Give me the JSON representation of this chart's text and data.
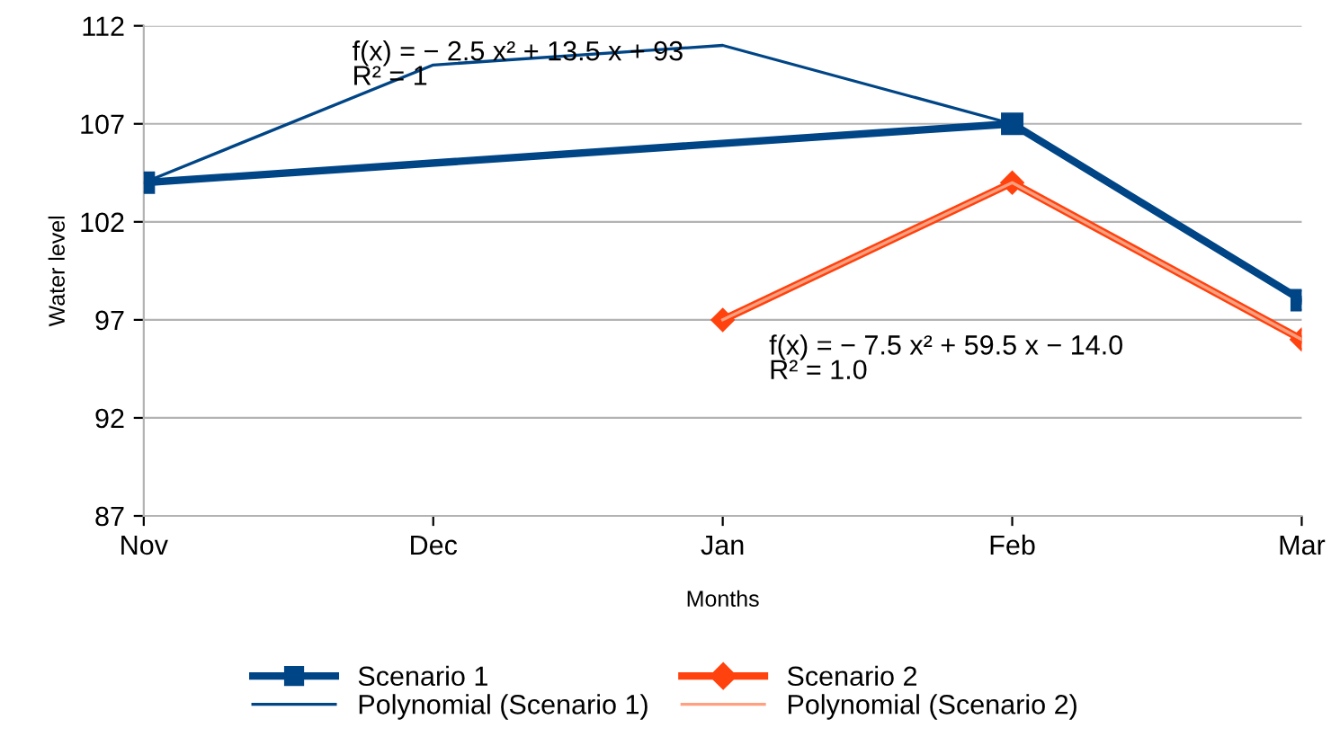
{
  "chart_data": {
    "type": "line",
    "xlabel": "Months",
    "ylabel": "Water level",
    "categories": [
      "Nov",
      "Dec",
      "Jan",
      "Feb",
      "Mar"
    ],
    "ylim": [
      87,
      112
    ],
    "yticks": [
      87,
      92,
      97,
      102,
      107,
      112
    ],
    "grid": "y",
    "legend": "bottom",
    "series": [
      {
        "name": "Scenario 1",
        "color": "#004586",
        "marker": "square",
        "values": [
          104,
          null,
          null,
          107,
          98
        ]
      },
      {
        "name": "Polynomial (Scenario 1)",
        "color": "#004586",
        "marker": "none",
        "values": [
          104,
          110,
          111,
          107,
          98
        ]
      },
      {
        "name": "Scenario 2",
        "color": "#ff420e",
        "marker": "diamond",
        "values": [
          null,
          null,
          97,
          104,
          96
        ]
      },
      {
        "name": "Polynomial (Scenario 2)",
        "color": "#ffa080",
        "marker": "none",
        "values": [
          null,
          null,
          97,
          104,
          96
        ]
      }
    ],
    "annotations": [
      "f(x) = − 2.5 x² + 13.5 x + 93\nR² = 1",
      "f(x) = − 7.5 x² + 59.5 x − 14.0\nR² = 1.0"
    ]
  }
}
